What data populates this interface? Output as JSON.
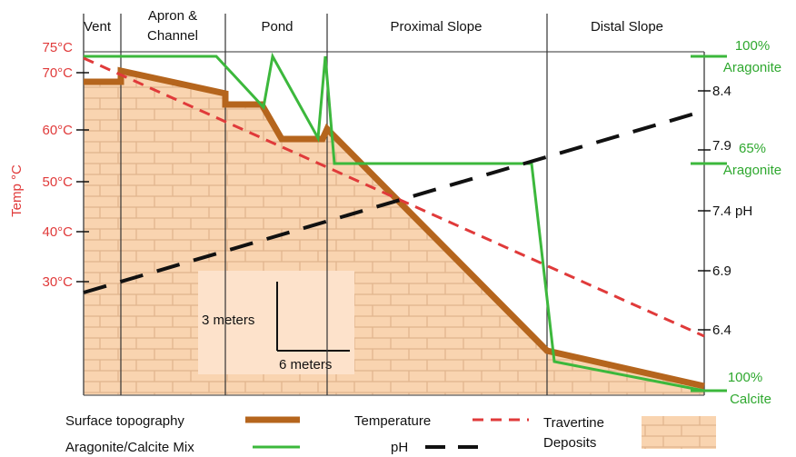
{
  "zones": [
    {
      "lines": [
        "Vent"
      ]
    },
    {
      "lines": [
        "Apron &",
        "Channel"
      ]
    },
    {
      "lines": [
        "Pond"
      ]
    },
    {
      "lines": [
        "Proximal Slope"
      ]
    },
    {
      "lines": [
        "Distal Slope"
      ]
    }
  ],
  "temperature_axis": {
    "title": "Temp °C",
    "labels": [
      "75°C",
      "70°C",
      "60°C",
      "50°C",
      "40°C",
      "30°C"
    ]
  },
  "ph_axis": {
    "labels": [
      "8.4",
      "7.9",
      "7.4 pH",
      "6.9",
      "6.4"
    ]
  },
  "mineral_axis": {
    "labels": [
      {
        "lines": [
          "100%",
          "Aragonite"
        ]
      },
      {
        "lines": [
          "65%",
          "Aragonite"
        ]
      },
      {
        "lines": [
          "100%",
          "Calcite"
        ]
      }
    ]
  },
  "scale": {
    "vertical": "3 meters",
    "horizontal": "6 meters"
  },
  "legend": {
    "surface": "Surface topography",
    "mix": "Aragonite/Calcite Mix",
    "temperature": "Temperature",
    "ph": "pH",
    "travertine": [
      "Travertine",
      "Deposits"
    ]
  }
}
